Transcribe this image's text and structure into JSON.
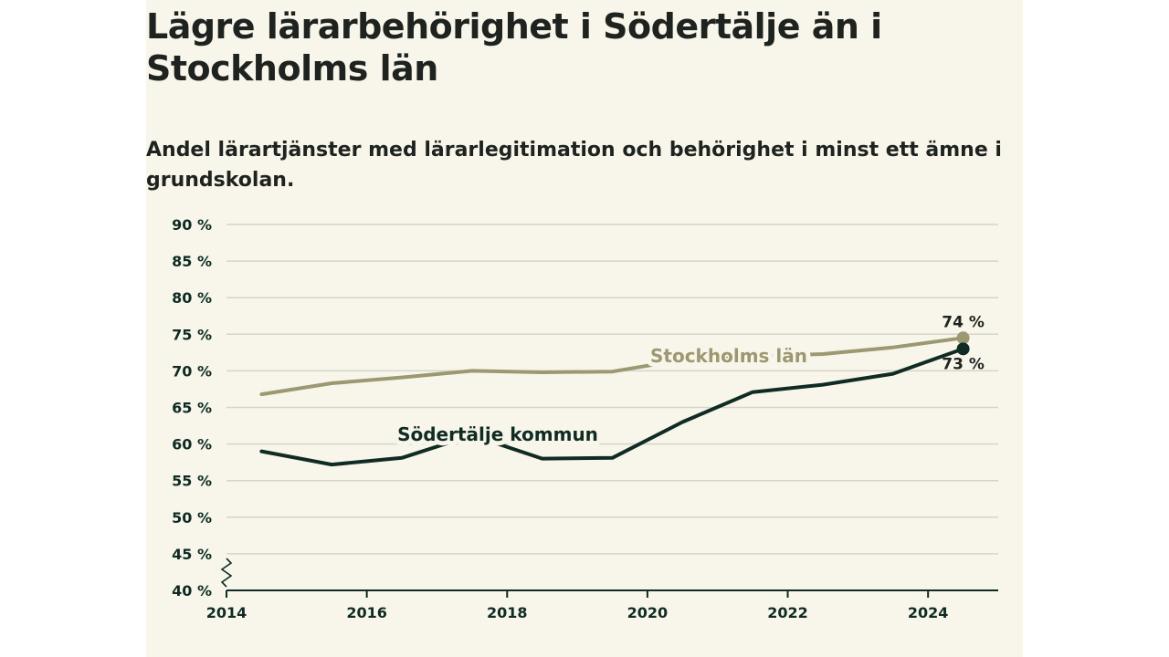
{
  "page": {
    "title": "Lägre lärarbehörighet i Södertälje än i Stockholms län",
    "subtitle": "Andel lärartjänster med lärarlegitimation och behörighet i minst ett ämne i grundskolan."
  },
  "colors": {
    "background": "#f8f6ea",
    "sodertalje": "#0f2b24",
    "stockholm": "#9c9872",
    "grid": "#d6d4ca"
  },
  "chart_data": {
    "type": "line",
    "title": "Lägre lärarbehörighet i Södertälje än i Stockholms län",
    "subtitle": "Andel lärartjänster med lärarlegitimation och behörighet i minst ett ämne i grundskolan.",
    "xlim": [
      2014,
      2025
    ],
    "ylim": [
      40,
      90
    ],
    "x_ticks": [
      "2014",
      "2016",
      "2018",
      "2020",
      "2022",
      "2024"
    ],
    "y_ticks": [
      "90 %",
      "85 %",
      "80 %",
      "75 %",
      "70 %",
      "65 %",
      "60 %",
      "55 %",
      "50 %",
      "45 %",
      "40 %"
    ],
    "grid": true,
    "broken_axis": true,
    "series": [
      {
        "name": "Stockholms län",
        "x": [
          2014.5,
          2015.5,
          2016.5,
          2017.5,
          2018.5,
          2019.5,
          2020.5,
          2021.5,
          2022.5,
          2023.5,
          2024.5
        ],
        "values": [
          66.8,
          68.3,
          69.1,
          70.0,
          69.8,
          69.9,
          71.5,
          72.0,
          72.3,
          73.2,
          74.5
        ],
        "end_label": "74 %"
      },
      {
        "name": "Södertälje kommun",
        "x": [
          2014.5,
          2015.5,
          2016.5,
          2017.5,
          2018.5,
          2019.5,
          2020.5,
          2021.5,
          2022.5,
          2023.5,
          2024.5
        ],
        "values": [
          59.0,
          57.2,
          58.1,
          61.2,
          58.0,
          58.1,
          63.0,
          67.1,
          68.1,
          69.6,
          73.0
        ],
        "end_label": "73 %"
      }
    ]
  }
}
